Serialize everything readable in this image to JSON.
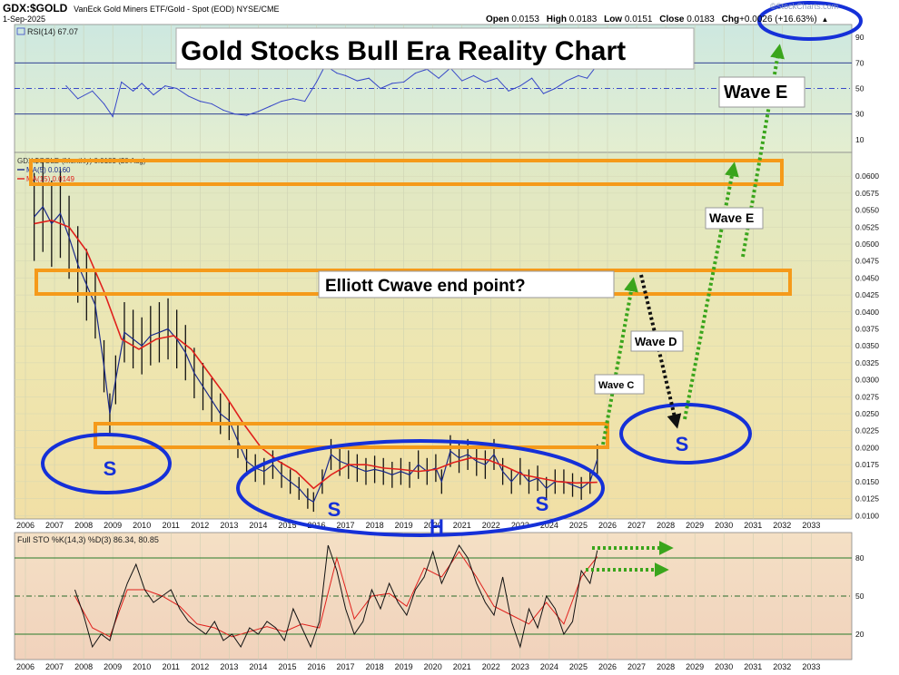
{
  "header": {
    "symbol": "GDX:$GOLD",
    "description": "VanEck Gold Miners ETF/Gold - Spot (EOD) NYSE/CME",
    "date": "1-Sep-2025",
    "open_label": "Open",
    "open": "0.0153",
    "high_label": "High",
    "high": "0.0183",
    "low_label": "Low",
    "low": "0.0151",
    "close_label": "Close",
    "close": "0.0183",
    "chg_label": "Chg",
    "chg": "+0.0026 (+16.63%)",
    "watermark": "©StockCharts.com"
  },
  "title_box": "Gold Stocks Bull Era Reality Chart",
  "annotations": {
    "elliott": "Elliott Cwave end point?",
    "wave_c": "Wave C",
    "wave_d": "Wave D",
    "wave_e_mid": "Wave E",
    "wave_e_top": "Wave E",
    "s_left": "S",
    "s_mid": "S",
    "h": "H",
    "s_right": "S",
    "s_future": "S"
  },
  "colors": {
    "annotation_orange": "#f59a1a",
    "annotation_blue": "#1530d8",
    "arrow_green": "#3aa51c",
    "arrow_black": "#111111",
    "price_ma15": "#e0201c",
    "price_ma5": "#1a2a8a",
    "rsi_line": "#3848c8"
  },
  "chart_data": [
    {
      "panel": "rsi",
      "type": "line",
      "legend": "RSI(14) 67.07",
      "yticks": [
        90,
        70,
        50,
        30,
        10
      ],
      "ylim": [
        0,
        100
      ],
      "reference_lines": [
        70,
        50,
        30
      ],
      "series": [
        {
          "x": [
            2007.4,
            2007.8,
            2008.3,
            2008.7,
            2009.0,
            2009.3,
            2009.7,
            2010.0,
            2010.4,
            2010.8,
            2011.2,
            2011.6,
            2012.0,
            2012.4,
            2012.8,
            2013.2,
            2013.6,
            2014.0,
            2014.4,
            2014.8,
            2015.2,
            2015.6,
            2016.0,
            2016.3,
            2016.7,
            2017.0,
            2017.4,
            2017.8,
            2018.2,
            2018.6,
            2019.0,
            2019.4,
            2019.8,
            2020.2,
            2020.6,
            2021.0,
            2021.4,
            2021.8,
            2022.2,
            2022.6,
            2023.0,
            2023.4,
            2023.8,
            2024.2,
            2024.6,
            2025.0,
            2025.3,
            2025.6
          ],
          "values": [
            52,
            42,
            48,
            38,
            28,
            55,
            48,
            54,
            45,
            52,
            50,
            44,
            40,
            38,
            33,
            30,
            29,
            32,
            36,
            40,
            42,
            40,
            55,
            68,
            62,
            60,
            56,
            58,
            50,
            54,
            55,
            62,
            65,
            58,
            66,
            56,
            60,
            55,
            58,
            48,
            52,
            58,
            46,
            50,
            56,
            60,
            58,
            67
          ]
        }
      ]
    },
    {
      "panel": "price",
      "type": "line",
      "legend_main": "GDX:$GOLD (Monthly) 0.0183 (20 Aug)",
      "legend_ma5": "MA(5) 0.0160",
      "legend_ma15": "MA(15) 0.0149",
      "ylim": [
        0.0095,
        0.0635
      ],
      "yticks": [
        0.06,
        0.0575,
        0.055,
        0.0525,
        0.05,
        0.0475,
        0.045,
        0.0425,
        0.04,
        0.0375,
        0.035,
        0.0325,
        0.03,
        0.0275,
        0.025,
        0.0225,
        0.02,
        0.0175,
        0.015,
        0.0125,
        0.01
      ],
      "xticks": [
        2006,
        2007,
        2008,
        2009,
        2010,
        2011,
        2012,
        2013,
        2014,
        2015,
        2016,
        2017,
        2018,
        2019,
        2020,
        2021,
        2022,
        2023,
        2024,
        2025,
        2026,
        2027,
        2028,
        2029,
        2030,
        2031,
        2032,
        2033
      ],
      "series": [
        {
          "name": "GDX:$GOLD",
          "x": [
            2006.3,
            2006.6,
            2006.9,
            2007.2,
            2007.5,
            2007.8,
            2008.1,
            2008.4,
            2008.7,
            2008.9,
            2009.1,
            2009.4,
            2009.7,
            2010.0,
            2010.3,
            2010.6,
            2010.9,
            2011.2,
            2011.5,
            2011.8,
            2012.1,
            2012.4,
            2012.7,
            2013.0,
            2013.3,
            2013.6,
            2013.9,
            2014.2,
            2014.5,
            2014.8,
            2015.1,
            2015.4,
            2015.7,
            2015.9,
            2016.2,
            2016.5,
            2016.8,
            2017.1,
            2017.4,
            2017.7,
            2018.0,
            2018.3,
            2018.6,
            2018.9,
            2019.2,
            2019.5,
            2019.8,
            2020.1,
            2020.3,
            2020.6,
            2020.9,
            2021.2,
            2021.5,
            2021.8,
            2022.1,
            2022.4,
            2022.7,
            2023.0,
            2023.3,
            2023.6,
            2023.9,
            2024.2,
            2024.5,
            2024.8,
            2025.1,
            2025.4,
            2025.65
          ],
          "values": [
            0.054,
            0.0555,
            0.053,
            0.0545,
            0.051,
            0.047,
            0.044,
            0.041,
            0.032,
            0.025,
            0.03,
            0.037,
            0.036,
            0.035,
            0.0365,
            0.037,
            0.0375,
            0.036,
            0.034,
            0.031,
            0.029,
            0.027,
            0.025,
            0.024,
            0.021,
            0.018,
            0.017,
            0.0165,
            0.0175,
            0.016,
            0.015,
            0.014,
            0.0125,
            0.012,
            0.015,
            0.019,
            0.018,
            0.0175,
            0.017,
            0.0165,
            0.0168,
            0.0165,
            0.016,
            0.0165,
            0.016,
            0.0175,
            0.0165,
            0.017,
            0.015,
            0.0195,
            0.0185,
            0.019,
            0.018,
            0.0175,
            0.019,
            0.0165,
            0.015,
            0.0165,
            0.015,
            0.0155,
            0.014,
            0.015,
            0.015,
            0.0145,
            0.014,
            0.015,
            0.0183
          ]
        },
        {
          "name": "MA(15)",
          "x": [
            2006.3,
            2006.9,
            2007.5,
            2008.1,
            2008.7,
            2009.3,
            2009.9,
            2010.5,
            2011.1,
            2011.7,
            2012.3,
            2012.9,
            2013.5,
            2014.1,
            2014.7,
            2015.3,
            2015.9,
            2016.5,
            2017.1,
            2017.7,
            2018.3,
            2018.9,
            2019.5,
            2020.1,
            2020.7,
            2021.3,
            2021.9,
            2022.5,
            2023.1,
            2023.7,
            2024.3,
            2024.9,
            2025.65
          ],
          "values": [
            0.053,
            0.0535,
            0.0525,
            0.049,
            0.043,
            0.036,
            0.0345,
            0.036,
            0.0365,
            0.0345,
            0.031,
            0.0275,
            0.0235,
            0.02,
            0.018,
            0.0165,
            0.014,
            0.016,
            0.0175,
            0.0175,
            0.017,
            0.0168,
            0.0165,
            0.0168,
            0.0178,
            0.0185,
            0.0182,
            0.0172,
            0.016,
            0.0155,
            0.015,
            0.0148,
            0.0149
          ]
        }
      ]
    },
    {
      "panel": "stochastic",
      "type": "line",
      "legend": "Full STO %K(14,3) %D(3) 86.34, 80.85",
      "yticks": [
        80,
        50,
        20
      ],
      "ylim": [
        0,
        100
      ],
      "reference_lines": [
        80,
        50,
        20
      ],
      "series": [
        {
          "name": "%K",
          "x": [
            2007.7,
            2008.0,
            2008.3,
            2008.6,
            2008.9,
            2009.2,
            2009.5,
            2009.8,
            2010.1,
            2010.4,
            2010.7,
            2011.0,
            2011.3,
            2011.6,
            2011.9,
            2012.2,
            2012.5,
            2012.8,
            2013.1,
            2013.4,
            2013.7,
            2014.0,
            2014.3,
            2014.6,
            2014.9,
            2015.2,
            2015.5,
            2015.8,
            2016.1,
            2016.4,
            2016.7,
            2017.0,
            2017.3,
            2017.6,
            2017.9,
            2018.2,
            2018.5,
            2018.8,
            2019.1,
            2019.4,
            2019.7,
            2020.0,
            2020.3,
            2020.6,
            2020.9,
            2021.2,
            2021.5,
            2021.8,
            2022.1,
            2022.4,
            2022.7,
            2023.0,
            2023.3,
            2023.6,
            2023.9,
            2024.2,
            2024.5,
            2024.8,
            2025.1,
            2025.4,
            2025.65
          ],
          "values": [
            55,
            35,
            10,
            20,
            15,
            40,
            60,
            75,
            55,
            45,
            50,
            55,
            40,
            30,
            25,
            20,
            30,
            15,
            20,
            10,
            25,
            20,
            30,
            25,
            15,
            40,
            25,
            10,
            30,
            90,
            70,
            40,
            20,
            30,
            55,
            40,
            60,
            45,
            35,
            55,
            65,
            85,
            60,
            75,
            90,
            80,
            60,
            45,
            35,
            65,
            30,
            10,
            40,
            25,
            50,
            40,
            20,
            30,
            70,
            60,
            86
          ]
        },
        {
          "name": "%D",
          "x": [
            2007.7,
            2008.3,
            2008.9,
            2009.5,
            2010.1,
            2010.7,
            2011.3,
            2011.9,
            2012.5,
            2013.1,
            2013.7,
            2014.3,
            2014.9,
            2015.5,
            2016.1,
            2016.7,
            2017.3,
            2017.9,
            2018.5,
            2019.1,
            2019.7,
            2020.3,
            2020.9,
            2021.5,
            2022.1,
            2022.7,
            2023.3,
            2023.9,
            2024.5,
            2025.1,
            2025.65
          ],
          "values": [
            50,
            25,
            18,
            55,
            55,
            50,
            42,
            28,
            25,
            18,
            22,
            26,
            22,
            28,
            25,
            80,
            32,
            50,
            52,
            42,
            72,
            65,
            85,
            65,
            42,
            35,
            28,
            45,
            28,
            65,
            81
          ]
        }
      ]
    }
  ]
}
